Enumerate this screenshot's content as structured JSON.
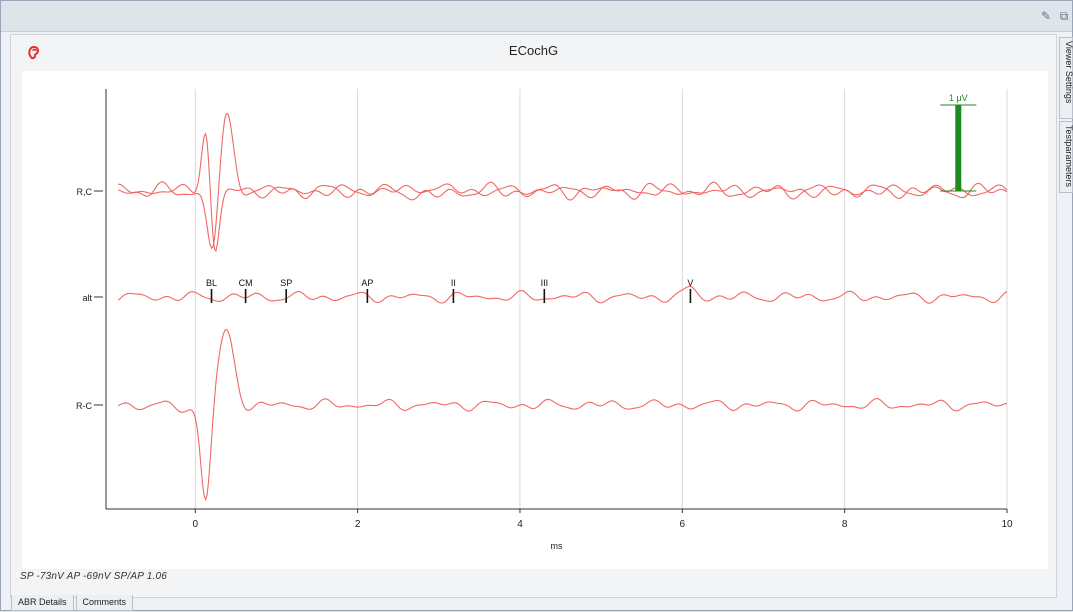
{
  "window": {
    "title": "ECochG",
    "ear_icon": "ear-icon",
    "top_icons": [
      "edit-icon",
      "restore-icon"
    ]
  },
  "side_tabs": [
    "Viewer Settings",
    "Testparameters"
  ],
  "bottom_tabs": [
    "ABR Details",
    "Comments"
  ],
  "summary": "SP -73nV  AP -69nV  SP/AP 1.06",
  "chart_data": {
    "type": "line",
    "xlabel": "ms",
    "xlim": [
      -1.1,
      10
    ],
    "x_ticks": [
      "0",
      "2",
      "4",
      "6",
      "8",
      "10"
    ],
    "x_tick_values": [
      0,
      2,
      4,
      6,
      8,
      10
    ],
    "grid": "vertical",
    "color": "#f0605c",
    "scale_bar": {
      "label": "1 µV",
      "x": 9.4,
      "color": "#1f8a1f"
    },
    "rows": [
      {
        "label": "R,C",
        "traces": 2
      },
      {
        "label": "alt",
        "traces": 1
      },
      {
        "label": "R-C",
        "traces": 1
      }
    ],
    "markers": [
      {
        "label": "BL",
        "x": 0.2
      },
      {
        "label": "CM",
        "x": 0.62
      },
      {
        "label": "SP",
        "x": 1.12
      },
      {
        "label": "AP",
        "x": 2.12
      },
      {
        "label": "II",
        "x": 3.18
      },
      {
        "label": "III",
        "x": 4.3
      },
      {
        "label": "V",
        "x": 6.1
      }
    ]
  }
}
